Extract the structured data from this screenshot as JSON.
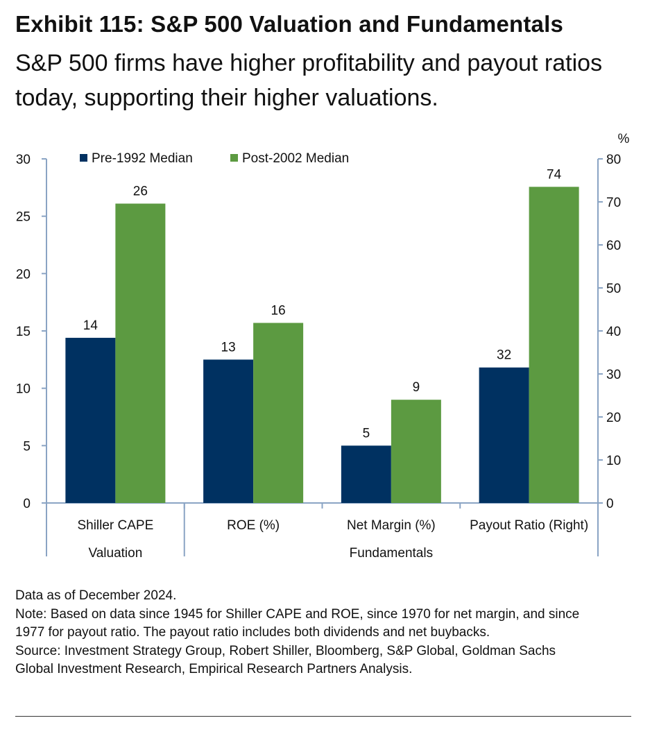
{
  "title": "Exhibit 115: S&P 500 Valuation and Fundamentals",
  "subtitle": "S&P 500 firms have higher profitability and payout ratios today, supporting their higher valuations.",
  "colors": {
    "pre": "#003161",
    "post": "#5c9a41",
    "axis": "#8aa4c4"
  },
  "chart_data": {
    "type": "bar",
    "categories": [
      "Shiller CAPE",
      "ROE (%)",
      "Net Margin (%)",
      "Payout Ratio (Right)"
    ],
    "groups": [
      {
        "label": "Valuation",
        "categories": [
          "Shiller CAPE"
        ]
      },
      {
        "label": "Fundamentals",
        "categories": [
          "ROE (%)",
          "Net Margin (%)",
          "Payout Ratio (Right)"
        ]
      }
    ],
    "series": [
      {
        "name": "Pre-1992 Median",
        "values": [
          14.4,
          12.5,
          5.0,
          31.5
        ],
        "labels": [
          "14",
          "13",
          "5",
          "32"
        ]
      },
      {
        "name": "Post-2002 Median",
        "values": [
          26.1,
          15.7,
          9.0,
          73.5
        ],
        "labels": [
          "26",
          "16",
          "9",
          "74"
        ]
      }
    ],
    "axis_for_category": [
      "left",
      "left",
      "left",
      "right"
    ],
    "y_left": {
      "min": 0,
      "max": 30,
      "ticks": [
        0,
        5,
        10,
        15,
        20,
        25,
        30
      ]
    },
    "y_right": {
      "min": 0,
      "max": 80,
      "ticks": [
        0,
        10,
        20,
        30,
        40,
        50,
        60,
        70,
        80
      ],
      "unit": "%"
    },
    "legend_position": "top-left",
    "grid": false
  },
  "notes": [
    "Data as of December 2024.",
    "Note: Based on data since 1945 for Shiller CAPE and ROE, since 1970 for net margin, and since",
    "1977 for payout ratio. The payout ratio includes both dividends and net buybacks.",
    "Source: Investment Strategy Group, Robert Shiller, Bloomberg, S&P Global, Goldman Sachs",
    "Global Investment Research, Empirical Research Partners Analysis."
  ]
}
